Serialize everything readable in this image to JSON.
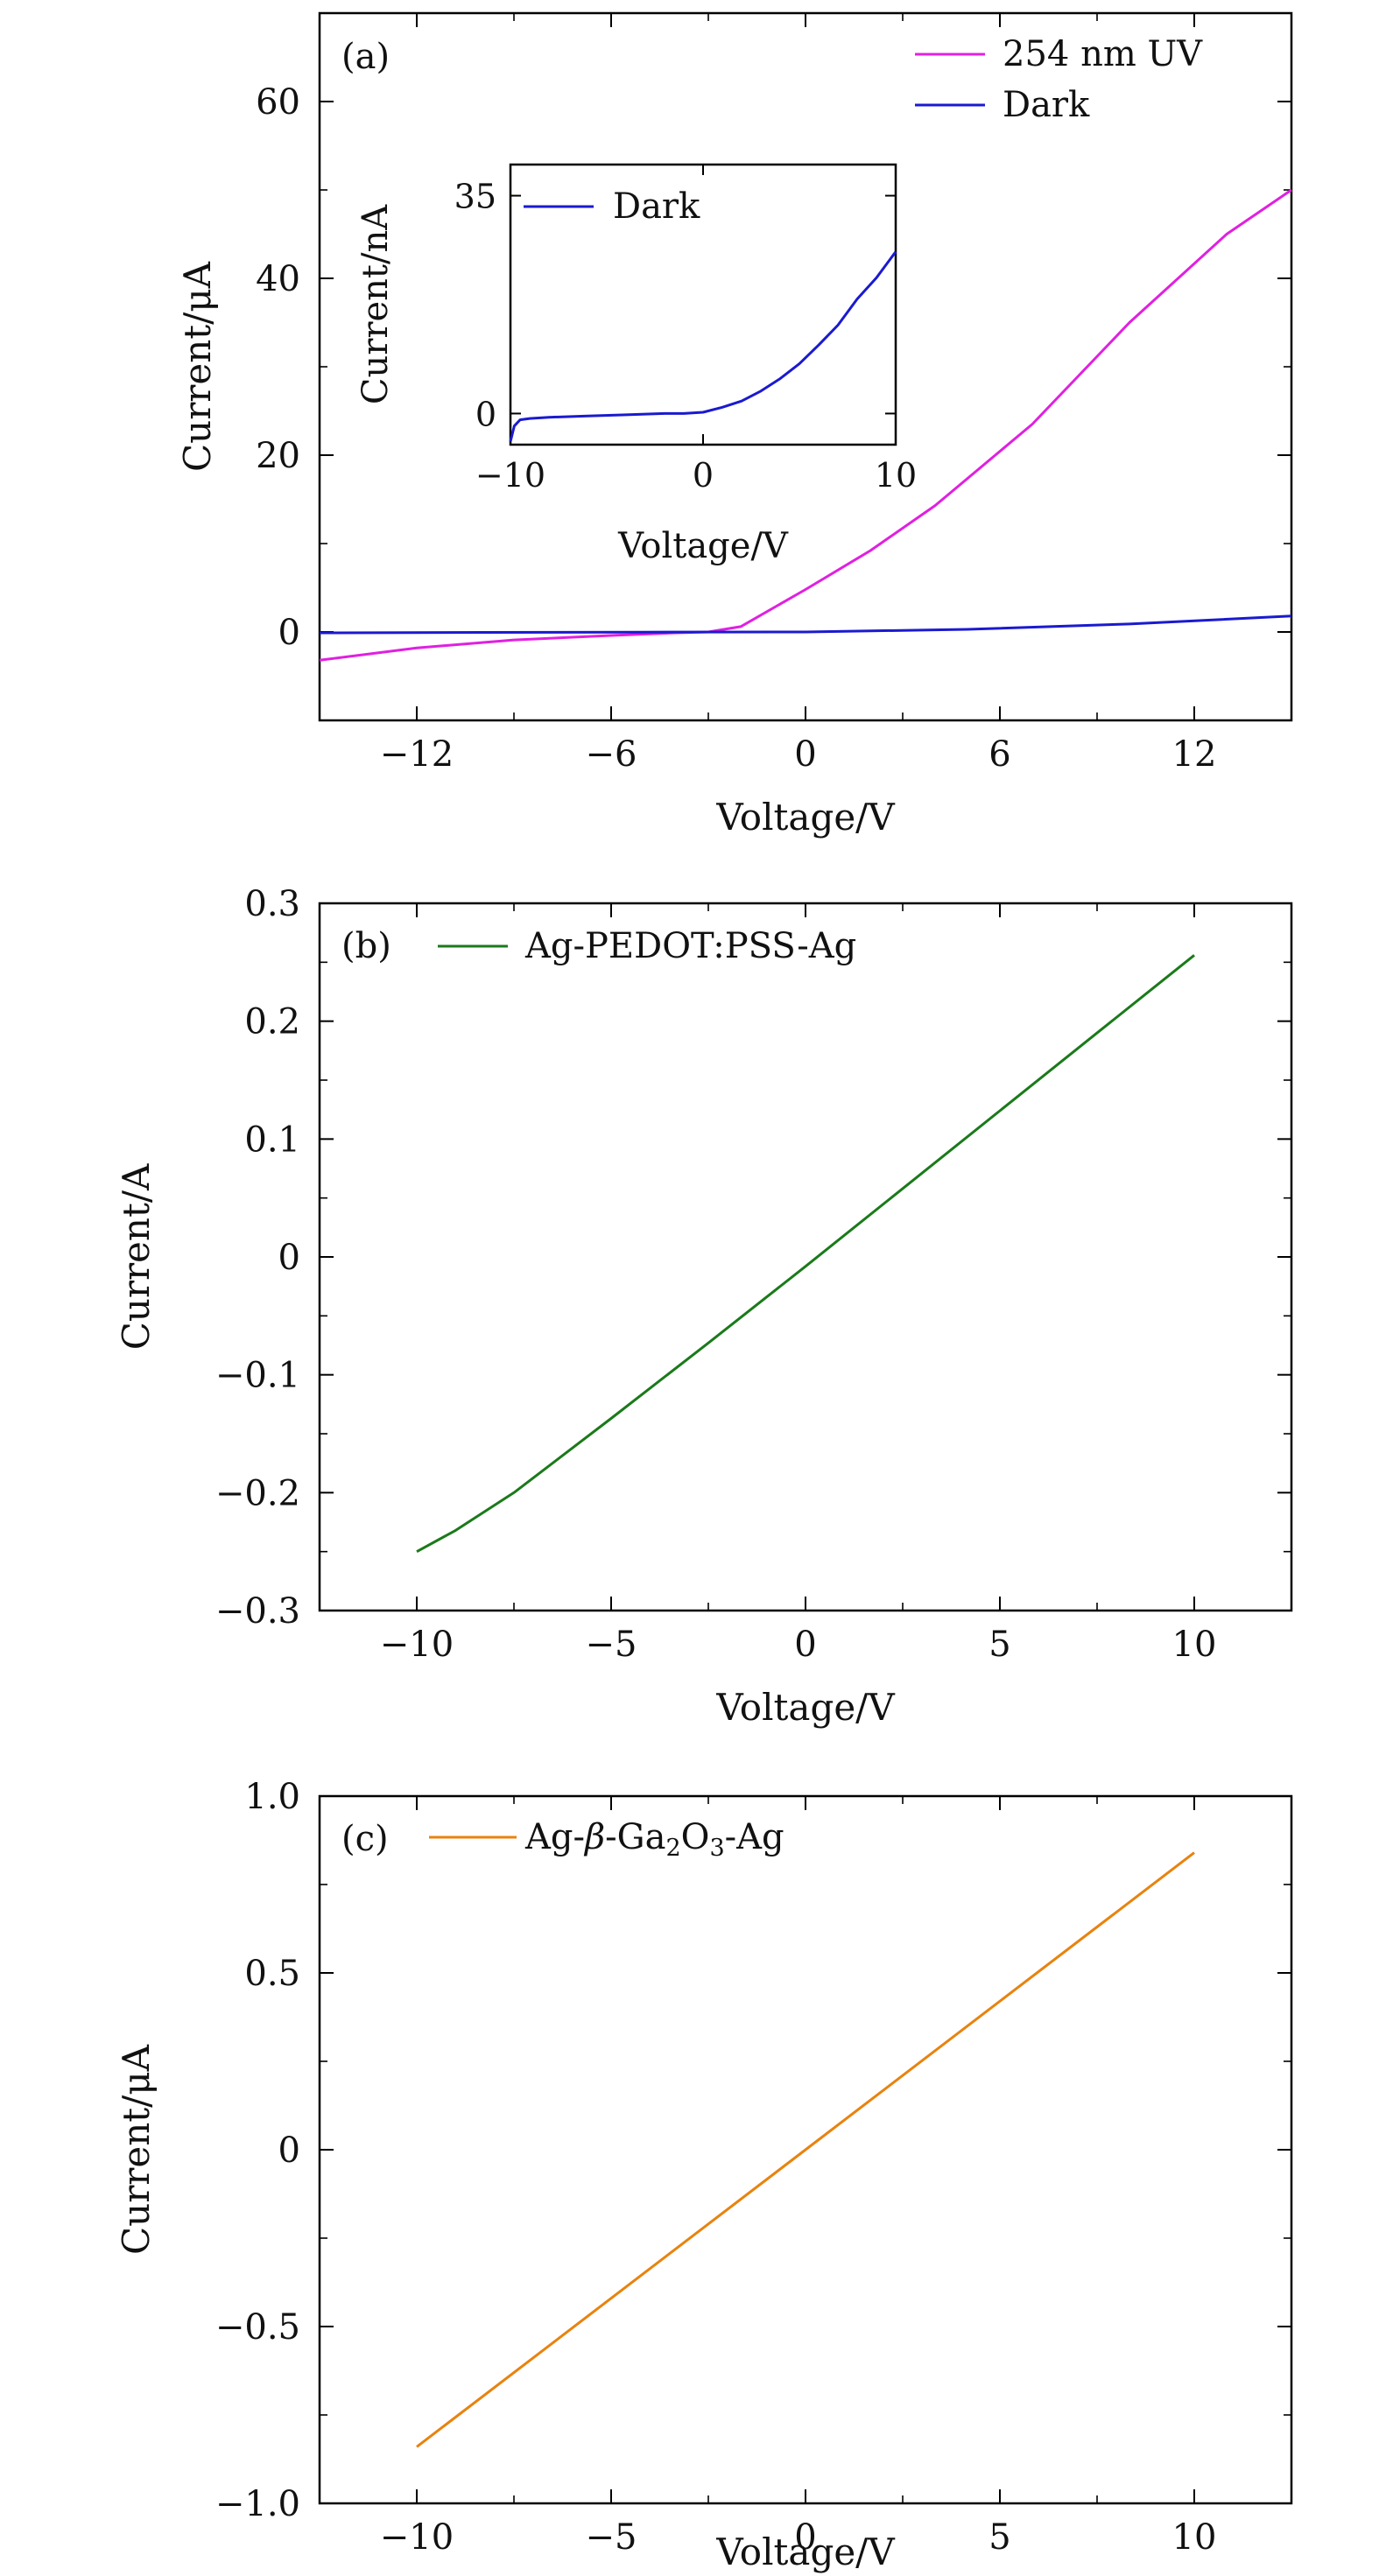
{
  "chart_data": [
    {
      "panel": "(a)",
      "type": "line",
      "xlabel": "Voltage/V",
      "ylabel": "Current/μA",
      "xlim": [
        -15,
        15
      ],
      "ylim": [
        -10,
        70
      ],
      "xticks": [
        -12,
        -6,
        0,
        6,
        12
      ],
      "xtick_labels": [
        "−12",
        "−6",
        "0",
        "6",
        "12"
      ],
      "yticks": [
        0,
        20,
        40,
        60
      ],
      "ytick_labels": [
        "0",
        "20",
        "40",
        "60"
      ],
      "legend_position": "top-right",
      "series": [
        {
          "name": "254 nm UV",
          "color": "#e020e0",
          "x": [
            -15,
            -12,
            -9,
            -6,
            -4,
            -3,
            -2,
            0,
            2,
            4,
            7,
            10,
            13,
            15
          ],
          "y": [
            -3.2,
            -1.8,
            -0.9,
            -0.4,
            -0.1,
            0.0,
            0.6,
            4.8,
            9.2,
            14.3,
            23.5,
            35.0,
            45.0,
            50.0
          ]
        },
        {
          "name": "Dark",
          "color": "#1a1ad0",
          "x": [
            -15,
            -10,
            -5,
            0,
            5,
            10,
            15
          ],
          "y": [
            -0.1,
            -0.05,
            -0.02,
            0.0,
            0.3,
            0.9,
            1.8
          ]
        }
      ],
      "inset": {
        "type": "line",
        "xlabel": "Voltage/V",
        "ylabel": "Current/nA",
        "xlim": [
          -10,
          10
        ],
        "ylim": [
          -5,
          40
        ],
        "xticks": [
          -10,
          0,
          10
        ],
        "xtick_labels": [
          "−10",
          "0",
          "10"
        ],
        "yticks": [
          0,
          35
        ],
        "ytick_labels": [
          "0",
          "35"
        ],
        "legend_position": "top-left",
        "series": [
          {
            "name": "Dark",
            "color": "#1a1ad0",
            "x": [
              -10,
              -9.8,
              -9.5,
              -9,
              -8,
              -6,
              -4,
              -2,
              -1,
              0,
              1,
              2,
              3,
              4,
              5,
              6,
              7,
              8,
              9,
              10
            ],
            "y": [
              -4.5,
              -2.0,
              -1.0,
              -0.8,
              -0.6,
              -0.4,
              -0.2,
              0.0,
              0.0,
              0.2,
              1.0,
              2.0,
              3.6,
              5.6,
              8.0,
              11.0,
              14.2,
              18.4,
              21.8,
              26.0
            ]
          }
        ]
      }
    },
    {
      "panel": "(b)",
      "type": "line",
      "xlabel": "Voltage/V",
      "ylabel": "Current/A",
      "xlim": [
        -12.5,
        12.5
      ],
      "ylim": [
        -0.3,
        0.3
      ],
      "xticks": [
        -10,
        -5,
        0,
        5,
        10
      ],
      "xtick_labels": [
        "−10",
        "−5",
        "0",
        "5",
        "10"
      ],
      "yticks": [
        -0.3,
        -0.2,
        -0.1,
        0,
        0.1,
        0.2,
        0.3
      ],
      "ytick_labels": [
        "−0.3",
        "−0.2",
        "−0.1",
        "0",
        "0.1",
        "0.2",
        "0.3"
      ],
      "legend_position": "top-left",
      "series": [
        {
          "name": "Ag-PEDOT:PSS-Ag",
          "color": "#1a7a1a",
          "x": [
            -10,
            -9,
            -7.5,
            -5,
            -2.5,
            0,
            2.5,
            5,
            7.5,
            10
          ],
          "y": [
            -0.25,
            -0.232,
            -0.2,
            -0.137,
            -0.073,
            -0.008,
            0.058,
            0.124,
            0.19,
            0.256
          ]
        }
      ]
    },
    {
      "panel": "(c)",
      "type": "line",
      "xlabel": "Voltage/V",
      "ylabel": "Current/μA",
      "xlim": [
        -12.5,
        12.5
      ],
      "ylim": [
        -1.0,
        1.0
      ],
      "xticks": [
        -10,
        -5,
        0,
        5,
        10
      ],
      "xtick_labels": [
        "−10",
        "−5",
        "0",
        "5",
        "10"
      ],
      "yticks": [
        -1.0,
        -0.5,
        0,
        0.5,
        1.0
      ],
      "ytick_labels": [
        "−1.0",
        "−0.5",
        "0",
        "0.5",
        "1.0"
      ],
      "legend_position": "top-left",
      "legend_label": {
        "prefix": "Ag-",
        "beta": "β",
        "mid": "-Ga",
        "sub1": "2",
        "o": "O",
        "sub2": "3",
        "suffix": "-Ag"
      },
      "series": [
        {
          "name": "Ag-β-Ga₂O₃-Ag",
          "color": "#e8830f",
          "x": [
            -10,
            0,
            10
          ],
          "y": [
            -0.84,
            0.0,
            0.84
          ]
        }
      ]
    }
  ]
}
